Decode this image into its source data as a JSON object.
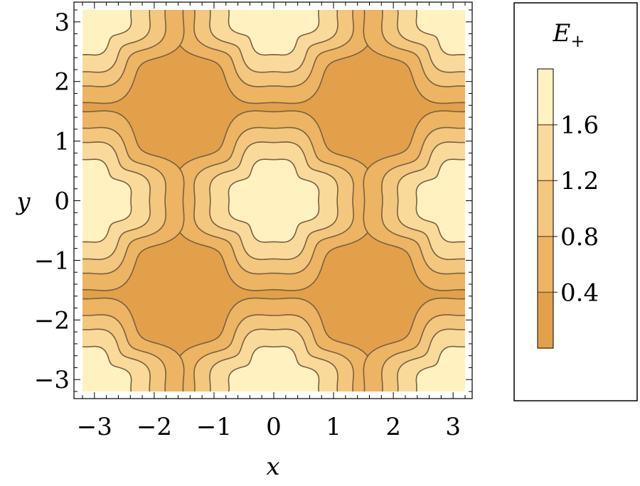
{
  "chart_data": {
    "type": "contour",
    "xlabel": "x",
    "ylabel": "y",
    "xlim": [
      -3.2,
      3.2
    ],
    "ylim": [
      -3.2,
      3.2
    ],
    "x_ticks": [
      -3,
      -2,
      -1,
      0,
      1,
      2,
      3
    ],
    "y_ticks": [
      -3,
      -2,
      -1,
      0,
      1,
      2,
      3
    ],
    "x_tick_labels": [
      "−3",
      "−2",
      "−1",
      "0",
      "1",
      "2",
      "3"
    ],
    "y_tick_labels": [
      "−3",
      "−2",
      "−1",
      "0",
      "1",
      "2",
      "3"
    ],
    "contour_levels": [
      0.4,
      0.8,
      1.2,
      1.6
    ],
    "level_colors": [
      "#e3a04b",
      "#ecb463",
      "#f3c77e",
      "#f9da9b",
      "#fff2c0"
    ],
    "contour_line_color": "#7a6040",
    "maxima": [
      {
        "x": 0,
        "y": 0
      },
      {
        "x": 0,
        "y": 3.14
      },
      {
        "x": 0,
        "y": -3.14
      },
      {
        "x": 3.14,
        "y": 0
      },
      {
        "x": -3.14,
        "y": 0
      },
      {
        "x": 3.14,
        "y": 3.14
      },
      {
        "x": -3.14,
        "y": 3.14
      },
      {
        "x": 3.14,
        "y": -3.14
      },
      {
        "x": -3.14,
        "y": -3.14
      }
    ],
    "legend": {
      "title": "E",
      "title_subscript": "+",
      "tick_values": [
        0.4,
        0.8,
        1.2,
        1.6
      ],
      "tick_labels": [
        "0.4",
        "0.8",
        "1.2",
        "1.6"
      ],
      "range": [
        0,
        2.0
      ],
      "placement": "right"
    }
  }
}
